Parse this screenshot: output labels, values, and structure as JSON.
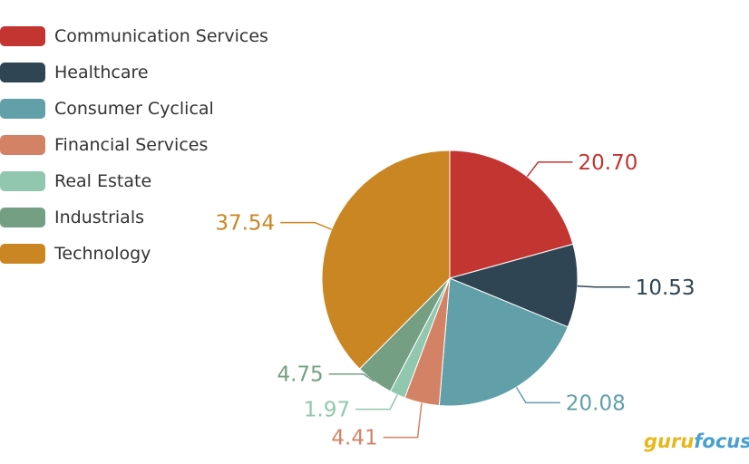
{
  "chart_data": {
    "type": "pie",
    "categories": [
      "Communication Services",
      "Healthcare",
      "Consumer Cyclical",
      "Financial Services",
      "Real Estate",
      "Industrials",
      "Technology"
    ],
    "values": [
      20.7,
      10.53,
      20.08,
      4.41,
      1.97,
      4.75,
      37.54
    ],
    "value_labels": [
      "20.70",
      "10.53",
      "20.08",
      "4.41",
      "1.97",
      "4.75",
      "37.54"
    ],
    "colors": [
      "#c23531",
      "#2f4554",
      "#61a0a8",
      "#d48265",
      "#91c7ae",
      "#749f83",
      "#ca8622"
    ],
    "legend_position": "top-left",
    "start_angle": "12 o'clock, clockwise"
  },
  "watermark": {
    "part1": "guru",
    "part2": "focus"
  }
}
